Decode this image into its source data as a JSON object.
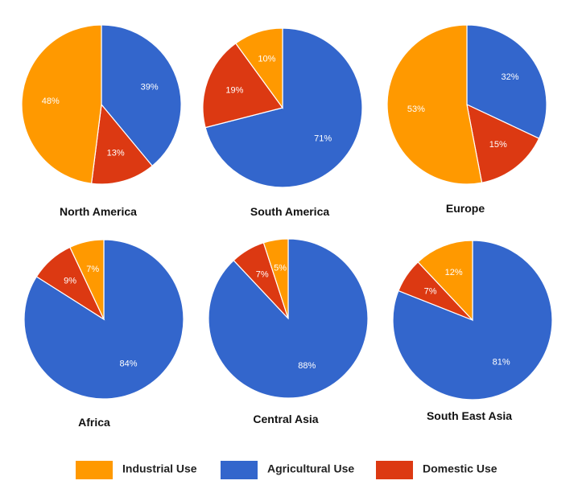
{
  "legend": {
    "items": [
      {
        "label": "Industrial Use",
        "color": "#FF9900"
      },
      {
        "label": "Agricultural Use",
        "color": "#3366CC"
      },
      {
        "label": "Domestic Use",
        "color": "#DC3912"
      }
    ]
  },
  "chart_data": [
    {
      "type": "pie",
      "title": "North America",
      "slices": [
        {
          "category": "Agricultural Use",
          "value": 39,
          "label": "39%",
          "color": "#3366CC"
        },
        {
          "category": "Domestic Use",
          "value": 13,
          "label": "13%",
          "color": "#DC3912"
        },
        {
          "category": "Industrial Use",
          "value": 48,
          "label": "48%",
          "color": "#FF9900"
        }
      ],
      "legend_position": "bottom"
    },
    {
      "type": "pie",
      "title": "South America",
      "slices": [
        {
          "category": "Agricultural Use",
          "value": 71,
          "label": "71%",
          "color": "#3366CC"
        },
        {
          "category": "Domestic Use",
          "value": 19,
          "label": "19%",
          "color": "#DC3912"
        },
        {
          "category": "Industrial Use",
          "value": 10,
          "label": "10%",
          "color": "#FF9900"
        }
      ],
      "legend_position": "bottom"
    },
    {
      "type": "pie",
      "title": "Europe",
      "slices": [
        {
          "category": "Agricultural Use",
          "value": 32,
          "label": "32%",
          "color": "#3366CC"
        },
        {
          "category": "Domestic Use",
          "value": 15,
          "label": "15%",
          "color": "#DC3912"
        },
        {
          "category": "Industrial Use",
          "value": 53,
          "label": "53%",
          "color": "#FF9900"
        }
      ],
      "legend_position": "bottom"
    },
    {
      "type": "pie",
      "title": "Africa",
      "slices": [
        {
          "category": "Agricultural Use",
          "value": 84,
          "label": "84%",
          "color": "#3366CC"
        },
        {
          "category": "Domestic Use",
          "value": 9,
          "label": "9%",
          "color": "#DC3912"
        },
        {
          "category": "Industrial Use",
          "value": 7,
          "label": "7%",
          "color": "#FF9900"
        }
      ],
      "legend_position": "bottom"
    },
    {
      "type": "pie",
      "title": "Central Asia",
      "slices": [
        {
          "category": "Agricultural Use",
          "value": 88,
          "label": "88%",
          "color": "#3366CC"
        },
        {
          "category": "Domestic Use",
          "value": 7,
          "label": "7%",
          "color": "#DC3912"
        },
        {
          "category": "Industrial Use",
          "value": 5,
          "label": "5%",
          "color": "#FF9900"
        }
      ],
      "legend_position": "bottom"
    },
    {
      "type": "pie",
      "title": "South East Asia",
      "slices": [
        {
          "category": "Agricultural Use",
          "value": 81,
          "label": "81%",
          "color": "#3366CC"
        },
        {
          "category": "Domestic Use",
          "value": 7,
          "label": "7%",
          "color": "#DC3912"
        },
        {
          "category": "Industrial Use",
          "value": 12,
          "label": "12%",
          "color": "#FF9900"
        }
      ],
      "legend_position": "bottom"
    }
  ]
}
